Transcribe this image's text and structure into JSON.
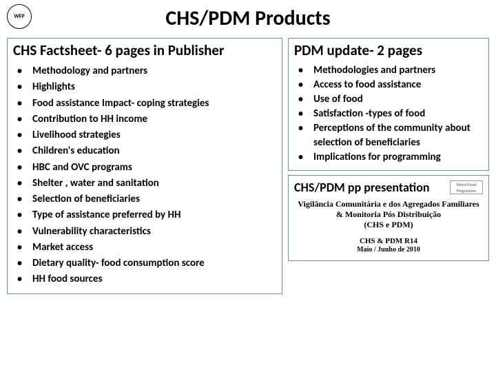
{
  "logo_text": "WFP",
  "title": "CHS/PDM Products",
  "left": {
    "heading": "CHS Factsheet- 6 pages in Publisher",
    "items": [
      "Methodology and partners",
      "Highlights",
      "Food assistance Impact- coping strategies",
      "Contribution to HH income",
      "Livelihood strategies",
      "Children's education",
      "HBC and OVC programs",
      "Shelter , water and sanitation",
      "Selection of beneficiaries",
      "Type of assistance  preferred by HH",
      "Vulnerability characteristics",
      "Market access",
      "Dietary quality- food consumption score",
      "HH food sources"
    ]
  },
  "right_top": {
    "heading": "PDM update- 2 pages",
    "items": [
      "Methodologies and partners",
      "Access to food assistance",
      "Use of food",
      "Satisfaction  -types of food",
      "Perceptions of the community about selection of beneficiaries",
      "Implications for programming"
    ]
  },
  "pp": {
    "heading": "CHS/PDM pp presentation",
    "mini_logo": "World Food Programme",
    "line1": "Vigilância Comunitária e dos Agregados Familiares\n& Monitoria Pós Distribuição\n(CHS e PDM)",
    "line2": "CHS & PDM R14",
    "line3": "Maio / Junho de 2010"
  },
  "colors": {
    "border": "#558ed5",
    "text": "#000000",
    "background": "#ffffff"
  }
}
